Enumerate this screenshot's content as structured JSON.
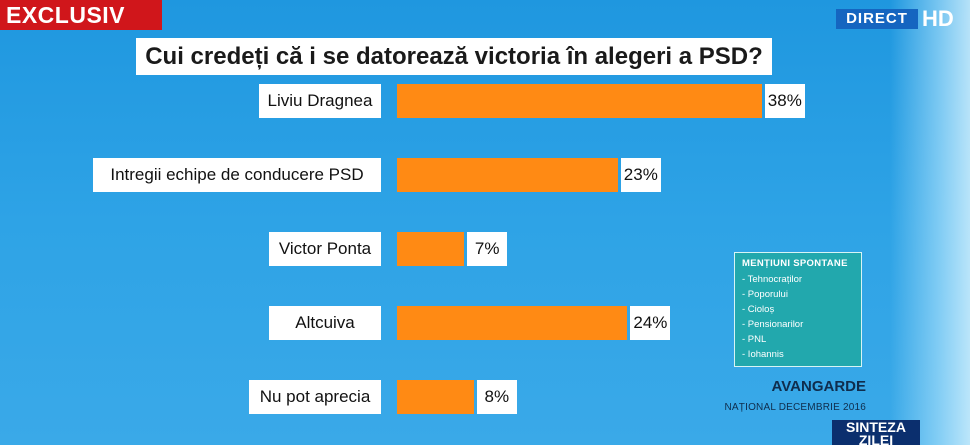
{
  "overlay": {
    "exclusiv": "EXCLUSIV",
    "direct": "DIRECT",
    "hd": "HD",
    "show_name": "SINTEZA ZILEI"
  },
  "chart_data": {
    "type": "bar",
    "orientation": "horizontal",
    "title": "Cui credeți că i se datorează victoria în alegeri a PSD?",
    "categories": [
      "Liviu Dragnea",
      "Intregii echipe de conducere PSD",
      "Victor Ponta",
      "Altcuiva",
      "Nu pot aprecia"
    ],
    "values": [
      38,
      23,
      7,
      24,
      8
    ],
    "value_labels": [
      "38%",
      "23%",
      "7%",
      "24%",
      "8%"
    ],
    "unit": "%",
    "bar_color": "#ff8a14"
  },
  "mentions": {
    "heading": "MENȚIUNI SPONTANE",
    "items": [
      "- Tehnocraților",
      "- Poporului",
      "- Cioloș",
      "- Pensionarilor",
      "- PNL",
      "- Iohannis"
    ]
  },
  "source": {
    "name": "AVANGARDE",
    "detail": "NAȚIONAL DECEMBRIE 2016"
  }
}
